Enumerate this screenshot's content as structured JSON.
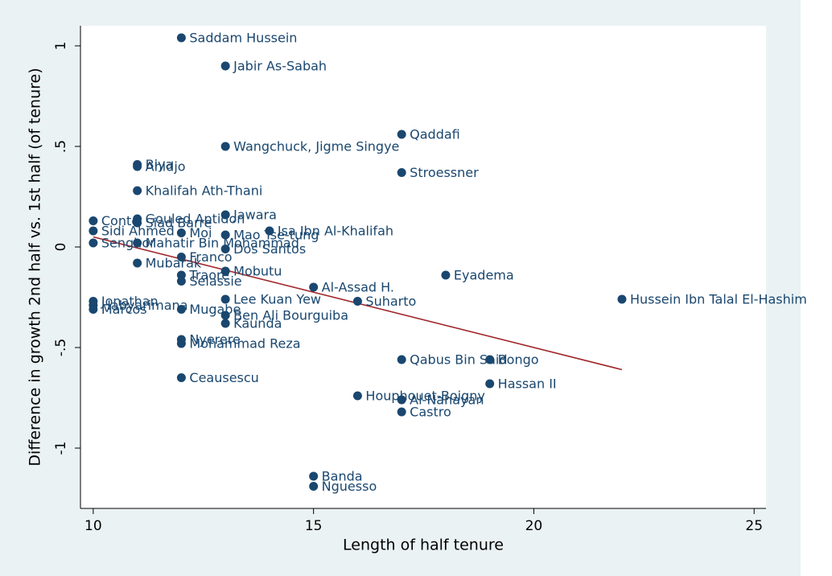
{
  "chart_data": {
    "type": "scatter",
    "x_label": "Length of half tenure",
    "y_label": "Difference in growth 2nd half vs. 1st half (of tenure)",
    "xlim": [
      9.71,
      25.27
    ],
    "ylim": [
      -1.3,
      1.1
    ],
    "xticks": [
      10,
      15,
      20,
      25
    ],
    "yticks": [
      -1,
      {
        "value": -0.5,
        "label": "-.5"
      },
      0,
      {
        "value": 0.5,
        "label": ".5"
      },
      1
    ],
    "color": "#1a476f",
    "points": {
      "labels": [
        "Saddam Hussein",
        "Jabir As-Sabah",
        "Qaddafi",
        "Wangchuck, Jigme Singye",
        "Stroessner",
        "Biya",
        "Ahidjo",
        "Khalifah Ath-Thani",
        "Jawara",
        "Conte",
        "Gouled Aptidon",
        "Siad Barre",
        "Isa Ibn Al-Khalifah",
        "Sidi Ahmed",
        "Moi",
        "Mao Tse-tung",
        "Mahatir Bin Mohammad",
        "Senghor",
        "Dos Santos",
        "Franco",
        "Mubarak",
        "Mobutu",
        "Traore",
        "Eyadema",
        "Selassie",
        "Al-Assad H.",
        "Lee Kuan Yew",
        "Hussein Ibn Talal El-Hashim",
        "Suharto",
        "Jonathan",
        "Habyarimana",
        "Marcos",
        "Mugabe",
        "Ben Ali Bourguiba",
        "Kaunda",
        "Nyerere",
        "Mohammad Reza",
        "Qabus Bin Said",
        "Bongo",
        "Hassan II",
        "Ceausescu",
        "Houphouet-Boigny",
        "Al-Nahayan",
        "Castro",
        "Banda",
        "Nguesso"
      ],
      "x": [
        12,
        13,
        17,
        13,
        17,
        11,
        11,
        11,
        13,
        10,
        11,
        11,
        14,
        10,
        12,
        13,
        11,
        10,
        13,
        12,
        11,
        13,
        12,
        18,
        12,
        15,
        13,
        22,
        16,
        10,
        10,
        10,
        12,
        13,
        13,
        12,
        12,
        17,
        19,
        19,
        12,
        16,
        17,
        17,
        15,
        15
      ],
      "values": [
        1.04,
        0.9,
        0.56,
        0.5,
        0.37,
        0.41,
        0.4,
        0.28,
        0.16,
        0.13,
        0.14,
        0.12,
        0.08,
        0.08,
        0.07,
        0.06,
        0.02,
        0.02,
        -0.01,
        -0.05,
        -0.08,
        -0.12,
        -0.14,
        -0.14,
        -0.17,
        -0.2,
        -0.26,
        -0.26,
        -0.27,
        -0.27,
        -0.29,
        -0.31,
        -0.31,
        -0.34,
        -0.38,
        -0.46,
        -0.48,
        -0.56,
        -0.56,
        -0.68,
        -0.65,
        -0.74,
        -0.76,
        -0.82,
        -1.14,
        -1.19
      ]
    },
    "fit": {
      "x": [
        10,
        22
      ],
      "values": [
        0.05,
        -0.61
      ],
      "color": "#a0262a"
    }
  }
}
